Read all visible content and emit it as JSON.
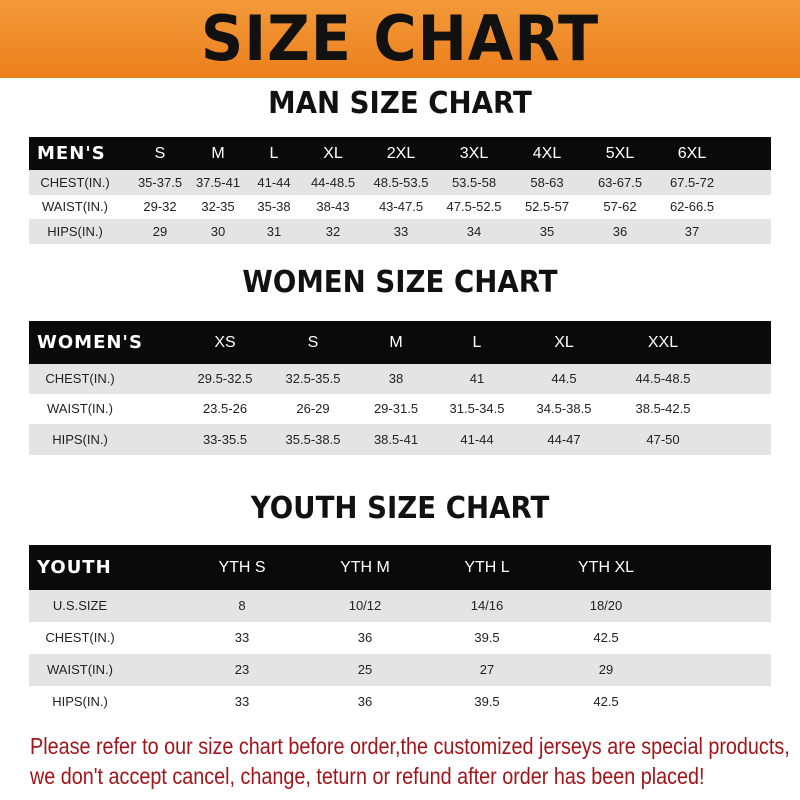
{
  "banner": {
    "title": "SIZE CHART"
  },
  "men": {
    "title": "MAN SIZE CHART",
    "header": [
      "MEN'S",
      "S",
      "M",
      "L",
      "XL",
      "2XL",
      "3XL",
      "4XL",
      "5XL",
      "6XL"
    ],
    "rows": [
      [
        "CHEST(IN.)",
        "35-37.5",
        "37.5-41",
        "41-44",
        "44-48.5",
        "48.5-53.5",
        "53.5-58",
        "58-63",
        "63-67.5",
        "67.5-72"
      ],
      [
        "WAIST(IN.)",
        "29-32",
        "32-35",
        "35-38",
        "38-43",
        "43-47.5",
        "47.5-52.5",
        "52.5-57",
        "57-62",
        "62-66.5"
      ],
      [
        "HIPS(IN.)",
        "29",
        "30",
        "31",
        "32",
        "33",
        "34",
        "35",
        "36",
        "37"
      ]
    ]
  },
  "women": {
    "title": "WOMEN SIZE CHART",
    "header": [
      "WOMEN'S",
      "XS",
      "S",
      "M",
      "L",
      "XL",
      "XXL"
    ],
    "rows": [
      [
        "CHEST(IN.)",
        "29.5-32.5",
        "32.5-35.5",
        "38",
        "41",
        "44.5",
        "44.5-48.5"
      ],
      [
        "WAIST(IN.)",
        "23.5-26",
        "26-29",
        "29-31.5",
        "31.5-34.5",
        "34.5-38.5",
        "38.5-42.5"
      ],
      [
        "HIPS(IN.)",
        "33-35.5",
        "35.5-38.5",
        "38.5-41",
        "41-44",
        "44-47",
        "47-50"
      ]
    ]
  },
  "youth": {
    "title": "YOUTH SIZE CHART",
    "header": [
      "YOUTH",
      "YTH S",
      "YTH M",
      "YTH L",
      "YTH XL"
    ],
    "rows": [
      [
        "U.S.SIZE",
        "8",
        "10/12",
        "14/16",
        "18/20"
      ],
      [
        "CHEST(IN.)",
        "33",
        "36",
        "39.5",
        "42.5"
      ],
      [
        "WAIST(IN.)",
        "23",
        "25",
        "27",
        "29"
      ],
      [
        "HIPS(IN.)",
        "33",
        "36",
        "39.5",
        "42.5"
      ]
    ]
  },
  "notice": {
    "line1": "Please refer to our size chart before order,the customized jerseys are special products,",
    "line2": "we don't accept cancel, change, teturn or refund after order has been placed!"
  },
  "colors": {
    "banner": "#ec7f1c",
    "header_bg": "#0a0a0a",
    "row_grey": "#e4e4e4",
    "notice": "#a3151a"
  }
}
